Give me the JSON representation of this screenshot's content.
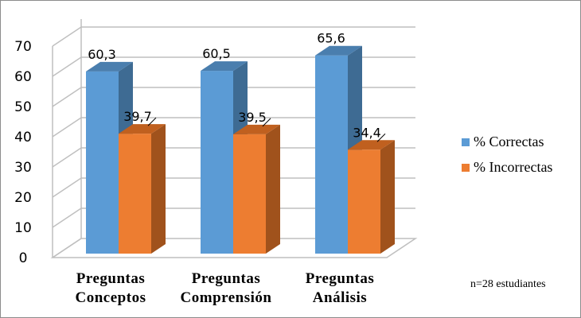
{
  "chart_data": {
    "type": "bar",
    "style": "3d-clustered-column",
    "title": "",
    "xlabel": "",
    "ylabel": "",
    "categories": [
      [
        "Preguntas",
        "Conceptos"
      ],
      [
        "Preguntas",
        "Comprensión"
      ],
      [
        "Preguntas",
        "Análisis"
      ]
    ],
    "series": [
      {
        "name": "% Correctas",
        "values": [
          60.3,
          60.5,
          65.6
        ],
        "labels": [
          "60,3",
          "60,5",
          "65,6"
        ],
        "color": "#5b9bd5",
        "side_color": "#3e6b93",
        "top_color": "#4a7eae"
      },
      {
        "name": "% Incorrectas",
        "values": [
          39.7,
          39.5,
          34.4
        ],
        "labels": [
          "39,7",
          "39,5",
          "34,4"
        ],
        "color": "#ed7d31",
        "side_color": "#a0521c",
        "top_color": "#c0601f"
      }
    ],
    "ylim": [
      0,
      70
    ],
    "yticks": [
      "0",
      "10",
      "20",
      "30",
      "40",
      "50",
      "60",
      "70"
    ],
    "grid": true,
    "legend_position": "right",
    "annotation": "n=28 estudiantes"
  }
}
